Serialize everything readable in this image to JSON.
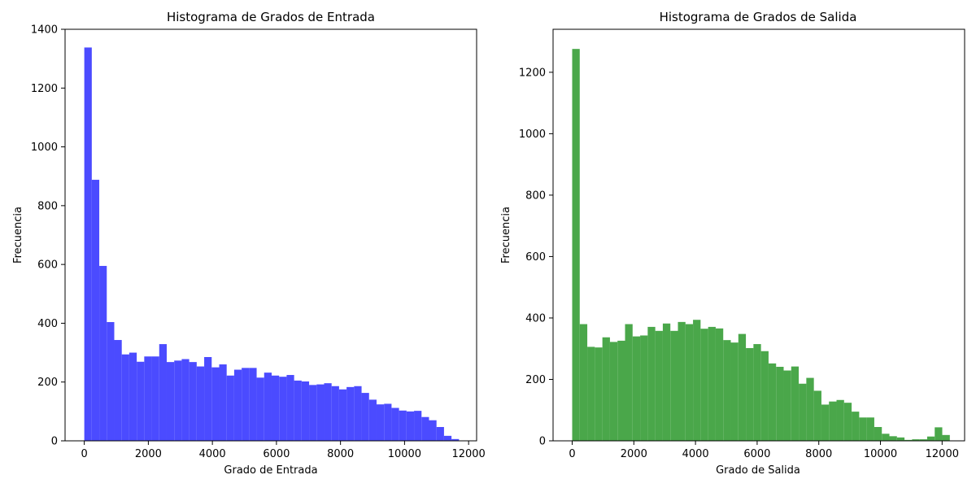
{
  "chart_data": [
    {
      "type": "bar",
      "title": "Histograma de Grados de Entrada",
      "xlabel": "Grado de Entrada",
      "ylabel": "Frecuencia",
      "color": "#4b4bff",
      "xlim": [
        -600,
        12250
      ],
      "ylim": [
        0,
        1400
      ],
      "xticks": [
        0,
        2000,
        4000,
        6000,
        8000,
        10000,
        12000
      ],
      "yticks": [
        0,
        200,
        400,
        600,
        800,
        1000,
        1200,
        1400
      ],
      "bin_start": 0,
      "bin_width": 234,
      "values": [
        1338,
        888,
        595,
        404,
        343,
        294,
        300,
        269,
        287,
        287,
        329,
        268,
        273,
        278,
        268,
        253,
        285,
        250,
        260,
        222,
        242,
        248,
        248,
        215,
        232,
        222,
        218,
        224,
        205,
        202,
        190,
        192,
        196,
        186,
        175,
        183,
        186,
        163,
        140,
        124,
        126,
        112,
        103,
        100,
        102,
        81,
        70,
        47,
        17,
        6
      ]
    },
    {
      "type": "bar",
      "title": "Histograma de Grados de Salida",
      "xlabel": "Grado de Salida",
      "ylabel": "Frecuencia",
      "color": "#4aa74a",
      "xlim": [
        -620,
        12730
      ],
      "ylim": [
        0,
        1340
      ],
      "xticks": [
        0,
        2000,
        4000,
        6000,
        8000,
        10000,
        12000
      ],
      "yticks": [
        0,
        200,
        400,
        600,
        800,
        1000,
        1200
      ],
      "bin_start": 0,
      "bin_width": 245,
      "values": [
        1276,
        380,
        306,
        304,
        337,
        322,
        326,
        380,
        340,
        343,
        371,
        358,
        382,
        358,
        387,
        380,
        394,
        365,
        371,
        366,
        328,
        320,
        348,
        302,
        315,
        292,
        252,
        241,
        229,
        242,
        186,
        205,
        163,
        118,
        128,
        133,
        124,
        95,
        76,
        76,
        45,
        23,
        15,
        11,
        3,
        5,
        5,
        14,
        44,
        19
      ]
    }
  ]
}
